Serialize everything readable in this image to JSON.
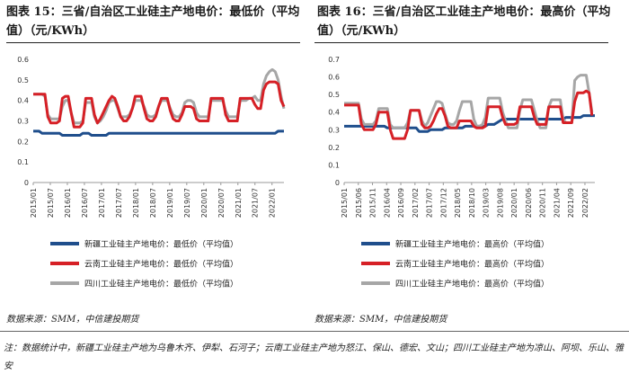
{
  "colors": {
    "series1": "#1f4e8c",
    "series2": "#d62026",
    "series3": "#a6a6a6"
  },
  "footer": {
    "source_left": "数据来源：SMM，中信建投期货",
    "source_right": "数据来源：SMM，中信建投期货",
    "note": "注：数据统计中，新疆工业硅主产地为乌鲁木齐、伊犁、石河子；云南工业硅主产地为怒江、保山、德宏、文山；四川工业硅主产地为凉山、阿坝、乐山、雅安"
  },
  "chart_data": [
    {
      "type": "line",
      "title": "图表 15：三省/自治区工业硅主产地电价：最低价（平均值）（元/KWh）",
      "ylim": [
        0,
        0.6
      ],
      "yticks": [
        "0",
        "0.1",
        "0.2",
        "0.3",
        "0.4",
        "0.5",
        "0.6"
      ],
      "xtick_labels": [
        "2015/01",
        "2015/07",
        "2016/01",
        "2016/07",
        "2017/01",
        "2017/07",
        "2018/01",
        "2018/07",
        "2019/01",
        "2019/07",
        "2020/01",
        "2020/07",
        "2021/01",
        "2021/07",
        "2022/01"
      ],
      "series": [
        {
          "name": "新疆工业硅主产地电价：最低价（平均值）",
          "values": [
            0.25,
            0.25,
            0.25,
            0.24,
            0.24,
            0.24,
            0.24,
            0.24,
            0.24,
            0.24,
            0.23,
            0.23,
            0.23,
            0.23,
            0.23,
            0.23,
            0.23,
            0.24,
            0.24,
            0.24,
            0.23,
            0.23,
            0.23,
            0.23,
            0.23,
            0.23,
            0.24,
            0.24,
            0.24,
            0.24,
            0.24,
            0.24,
            0.24,
            0.24,
            0.24,
            0.24,
            0.24,
            0.24,
            0.24,
            0.24,
            0.24,
            0.24,
            0.24,
            0.24,
            0.24,
            0.24,
            0.24,
            0.24,
            0.24,
            0.24,
            0.24,
            0.24,
            0.24,
            0.24,
            0.24,
            0.24,
            0.24,
            0.24,
            0.24,
            0.24,
            0.24,
            0.24,
            0.24,
            0.24,
            0.24,
            0.24,
            0.24,
            0.24,
            0.24,
            0.24,
            0.24,
            0.24,
            0.24,
            0.24,
            0.24,
            0.24,
            0.24,
            0.24,
            0.24,
            0.24,
            0.24,
            0.24,
            0.24,
            0.24,
            0.25,
            0.25,
            0.25
          ]
        },
        {
          "name": "云南工业硅主产地电价：最低价（平均值）",
          "values": [
            0.43,
            0.43,
            0.43,
            0.43,
            0.43,
            0.32,
            0.29,
            0.29,
            0.29,
            0.3,
            0.41,
            0.42,
            0.42,
            0.34,
            0.27,
            0.27,
            0.27,
            0.29,
            0.41,
            0.41,
            0.41,
            0.33,
            0.29,
            0.31,
            0.34,
            0.37,
            0.4,
            0.42,
            0.41,
            0.37,
            0.32,
            0.3,
            0.3,
            0.32,
            0.36,
            0.42,
            0.42,
            0.42,
            0.36,
            0.31,
            0.3,
            0.3,
            0.32,
            0.37,
            0.41,
            0.41,
            0.41,
            0.35,
            0.31,
            0.3,
            0.3,
            0.33,
            0.37,
            0.37,
            0.37,
            0.36,
            0.31,
            0.3,
            0.3,
            0.3,
            0.3,
            0.41,
            0.41,
            0.41,
            0.41,
            0.41,
            0.33,
            0.3,
            0.3,
            0.3,
            0.3,
            0.41,
            0.41,
            0.41,
            0.41,
            0.41,
            0.38,
            0.36,
            0.36,
            0.45,
            0.48,
            0.49,
            0.49,
            0.49,
            0.48,
            0.4,
            0.37
          ]
        },
        {
          "name": "四川工业硅主产地电价：最低价（平均值）",
          "values": [
            0.43,
            0.43,
            0.43,
            0.43,
            0.42,
            0.33,
            0.31,
            0.31,
            0.31,
            0.31,
            0.37,
            0.4,
            0.4,
            0.34,
            0.29,
            0.29,
            0.29,
            0.3,
            0.39,
            0.39,
            0.39,
            0.32,
            0.29,
            0.3,
            0.32,
            0.35,
            0.39,
            0.4,
            0.4,
            0.36,
            0.32,
            0.32,
            0.32,
            0.33,
            0.36,
            0.4,
            0.4,
            0.4,
            0.37,
            0.33,
            0.32,
            0.32,
            0.33,
            0.37,
            0.4,
            0.4,
            0.4,
            0.36,
            0.33,
            0.32,
            0.32,
            0.34,
            0.39,
            0.4,
            0.4,
            0.39,
            0.34,
            0.32,
            0.32,
            0.32,
            0.32,
            0.4,
            0.4,
            0.4,
            0.4,
            0.4,
            0.35,
            0.32,
            0.32,
            0.32,
            0.32,
            0.4,
            0.4,
            0.4,
            0.41,
            0.41,
            0.42,
            0.4,
            0.4,
            0.48,
            0.52,
            0.54,
            0.55,
            0.54,
            0.5,
            0.42,
            0.36
          ]
        }
      ]
    },
    {
      "type": "line",
      "title": "图表 16：三省/自治区工业硅主产地电价：最高价（平均值）（元/KWh）",
      "ylim": [
        0,
        0.7
      ],
      "yticks": [
        "0",
        "0.1",
        "0.2",
        "0.3",
        "0.4",
        "0.5",
        "0.6",
        "0.7"
      ],
      "xtick_labels": [
        "2015/01",
        "2015/06",
        "2015/11",
        "2016/04",
        "2016/09",
        "2017/02",
        "2017/07",
        "2017/12",
        "2018/05",
        "2018/10",
        "2019/03",
        "2019/08",
        "2020/01",
        "2020/06",
        "2020/11",
        "2021/04",
        "2021/09",
        "2022/02"
      ],
      "series": [
        {
          "name": "新疆工业硅主产地电价：最高价（平均值）",
          "values": [
            0.32,
            0.32,
            0.32,
            0.32,
            0.32,
            0.32,
            0.32,
            0.32,
            0.32,
            0.32,
            0.32,
            0.32,
            0.32,
            0.32,
            0.32,
            0.31,
            0.31,
            0.31,
            0.31,
            0.31,
            0.31,
            0.31,
            0.31,
            0.31,
            0.31,
            0.31,
            0.29,
            0.29,
            0.29,
            0.29,
            0.3,
            0.3,
            0.3,
            0.3,
            0.3,
            0.31,
            0.31,
            0.31,
            0.31,
            0.31,
            0.31,
            0.31,
            0.32,
            0.32,
            0.32,
            0.32,
            0.32,
            0.32,
            0.32,
            0.32,
            0.33,
            0.33,
            0.33,
            0.34,
            0.35,
            0.36,
            0.36,
            0.36,
            0.36,
            0.36,
            0.36,
            0.36,
            0.36,
            0.36,
            0.36,
            0.36,
            0.36,
            0.36,
            0.36,
            0.36,
            0.36,
            0.36,
            0.36,
            0.36,
            0.36,
            0.36,
            0.36,
            0.37,
            0.37,
            0.37,
            0.37,
            0.37,
            0.37,
            0.38,
            0.38,
            0.38,
            0.38,
            0.38
          ]
        },
        {
          "name": "云南工业硅主产地电价：最高价（平均值）",
          "values": [
            0.44,
            0.44,
            0.44,
            0.44,
            0.44,
            0.44,
            0.33,
            0.3,
            0.3,
            0.3,
            0.3,
            0.33,
            0.4,
            0.4,
            0.4,
            0.4,
            0.3,
            0.25,
            0.25,
            0.25,
            0.25,
            0.25,
            0.3,
            0.41,
            0.41,
            0.41,
            0.41,
            0.33,
            0.31,
            0.31,
            0.32,
            0.35,
            0.39,
            0.42,
            0.42,
            0.38,
            0.32,
            0.31,
            0.31,
            0.31,
            0.35,
            0.35,
            0.35,
            0.35,
            0.35,
            0.32,
            0.31,
            0.31,
            0.31,
            0.32,
            0.43,
            0.43,
            0.43,
            0.43,
            0.43,
            0.37,
            0.33,
            0.33,
            0.33,
            0.33,
            0.34,
            0.43,
            0.43,
            0.43,
            0.43,
            0.43,
            0.37,
            0.33,
            0.33,
            0.33,
            0.33,
            0.43,
            0.43,
            0.43,
            0.43,
            0.43,
            0.34,
            0.34,
            0.34,
            0.34,
            0.46,
            0.51,
            0.51,
            0.51,
            0.52,
            0.51,
            0.38
          ]
        },
        {
          "name": "四川工业硅主产地电价：最高价（平均值）",
          "values": [
            0.45,
            0.45,
            0.45,
            0.45,
            0.45,
            0.45,
            0.36,
            0.33,
            0.33,
            0.33,
            0.33,
            0.35,
            0.42,
            0.42,
            0.42,
            0.42,
            0.33,
            0.31,
            0.31,
            0.31,
            0.31,
            0.31,
            0.34,
            0.41,
            0.41,
            0.41,
            0.41,
            0.35,
            0.32,
            0.34,
            0.38,
            0.42,
            0.46,
            0.46,
            0.45,
            0.39,
            0.34,
            0.33,
            0.33,
            0.35,
            0.41,
            0.46,
            0.46,
            0.46,
            0.46,
            0.36,
            0.32,
            0.32,
            0.33,
            0.37,
            0.48,
            0.48,
            0.48,
            0.48,
            0.48,
            0.4,
            0.35,
            0.31,
            0.31,
            0.31,
            0.31,
            0.41,
            0.47,
            0.47,
            0.47,
            0.47,
            0.41,
            0.35,
            0.31,
            0.31,
            0.31,
            0.43,
            0.47,
            0.47,
            0.47,
            0.47,
            0.36,
            0.34,
            0.34,
            0.34,
            0.58,
            0.6,
            0.61,
            0.61,
            0.61,
            0.51,
            0.4
          ]
        }
      ]
    }
  ]
}
